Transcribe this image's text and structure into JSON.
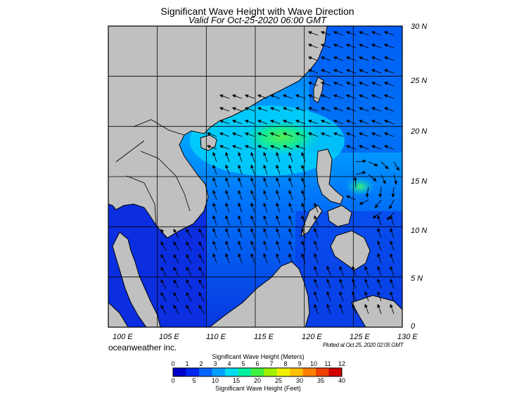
{
  "title": "Significant Wave Height with Wave Direction",
  "subtitle": "Valid For Oct-25-2020 06:00 GMT",
  "credit": "oceanweather inc.",
  "plotted": "Plotted at Oct 25, 2020 02:05 GMT",
  "lon_labels": [
    "100 E",
    "105 E",
    "110 E",
    "115 E",
    "120 E",
    "125 E",
    "130 E"
  ],
  "lat_labels": [
    "30 N",
    "25 N",
    "20 N",
    "15 N",
    "10 N",
    "5 N",
    "0"
  ],
  "colorbar": {
    "meters_title": "Significant Wave Height (Meters)",
    "feet_title": "Significant Wave Height (Feet)",
    "meters_ticks": [
      "0",
      "1",
      "2",
      "3",
      "4",
      "5",
      "6",
      "7",
      "8",
      "9",
      "10",
      "11",
      "12"
    ],
    "feet_ticks": [
      "0",
      "5",
      "10",
      "15",
      "20",
      "25",
      "30",
      "35",
      "40"
    ],
    "colors": [
      "#0000c8",
      "#0028f0",
      "#0064ff",
      "#00a0ff",
      "#00dcf0",
      "#00f0a0",
      "#40f040",
      "#a0f000",
      "#f0f000",
      "#ffc000",
      "#ff8000",
      "#f04000",
      "#d00000"
    ]
  },
  "colors": {
    "land": "#c0c0c0",
    "water_low": "#0a2ee0",
    "water_mid": "#0078ff",
    "water_high": "#00e0ff",
    "peak": "#40f060"
  }
}
